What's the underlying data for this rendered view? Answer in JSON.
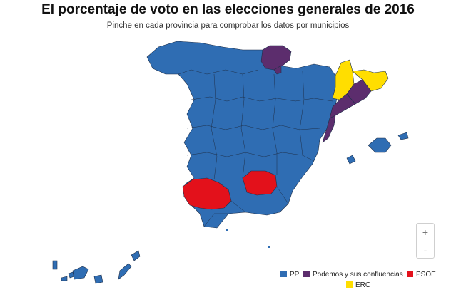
{
  "header": {
    "title": "El porcentaje de voto en las elecciones generales de 2016",
    "subtitle": "Pinche en cada provincia para comprobar los datos por municipios"
  },
  "colors": {
    "PP": "#2f6db3",
    "Podemos": "#5c2d6d",
    "PSOE": "#e3111b",
    "ERC": "#ffde00",
    "border": "#1e2f4a"
  },
  "legend": {
    "items": [
      {
        "label": "PP",
        "color": "#2f6db3"
      },
      {
        "label": "Podemos y sus confluencias",
        "color": "#5c2d6d"
      },
      {
        "label": "PSOE",
        "color": "#e3111b"
      },
      {
        "label": "ERC",
        "color": "#ffde00"
      }
    ]
  },
  "zoom": {
    "in_label": "+",
    "out_label": "-"
  }
}
